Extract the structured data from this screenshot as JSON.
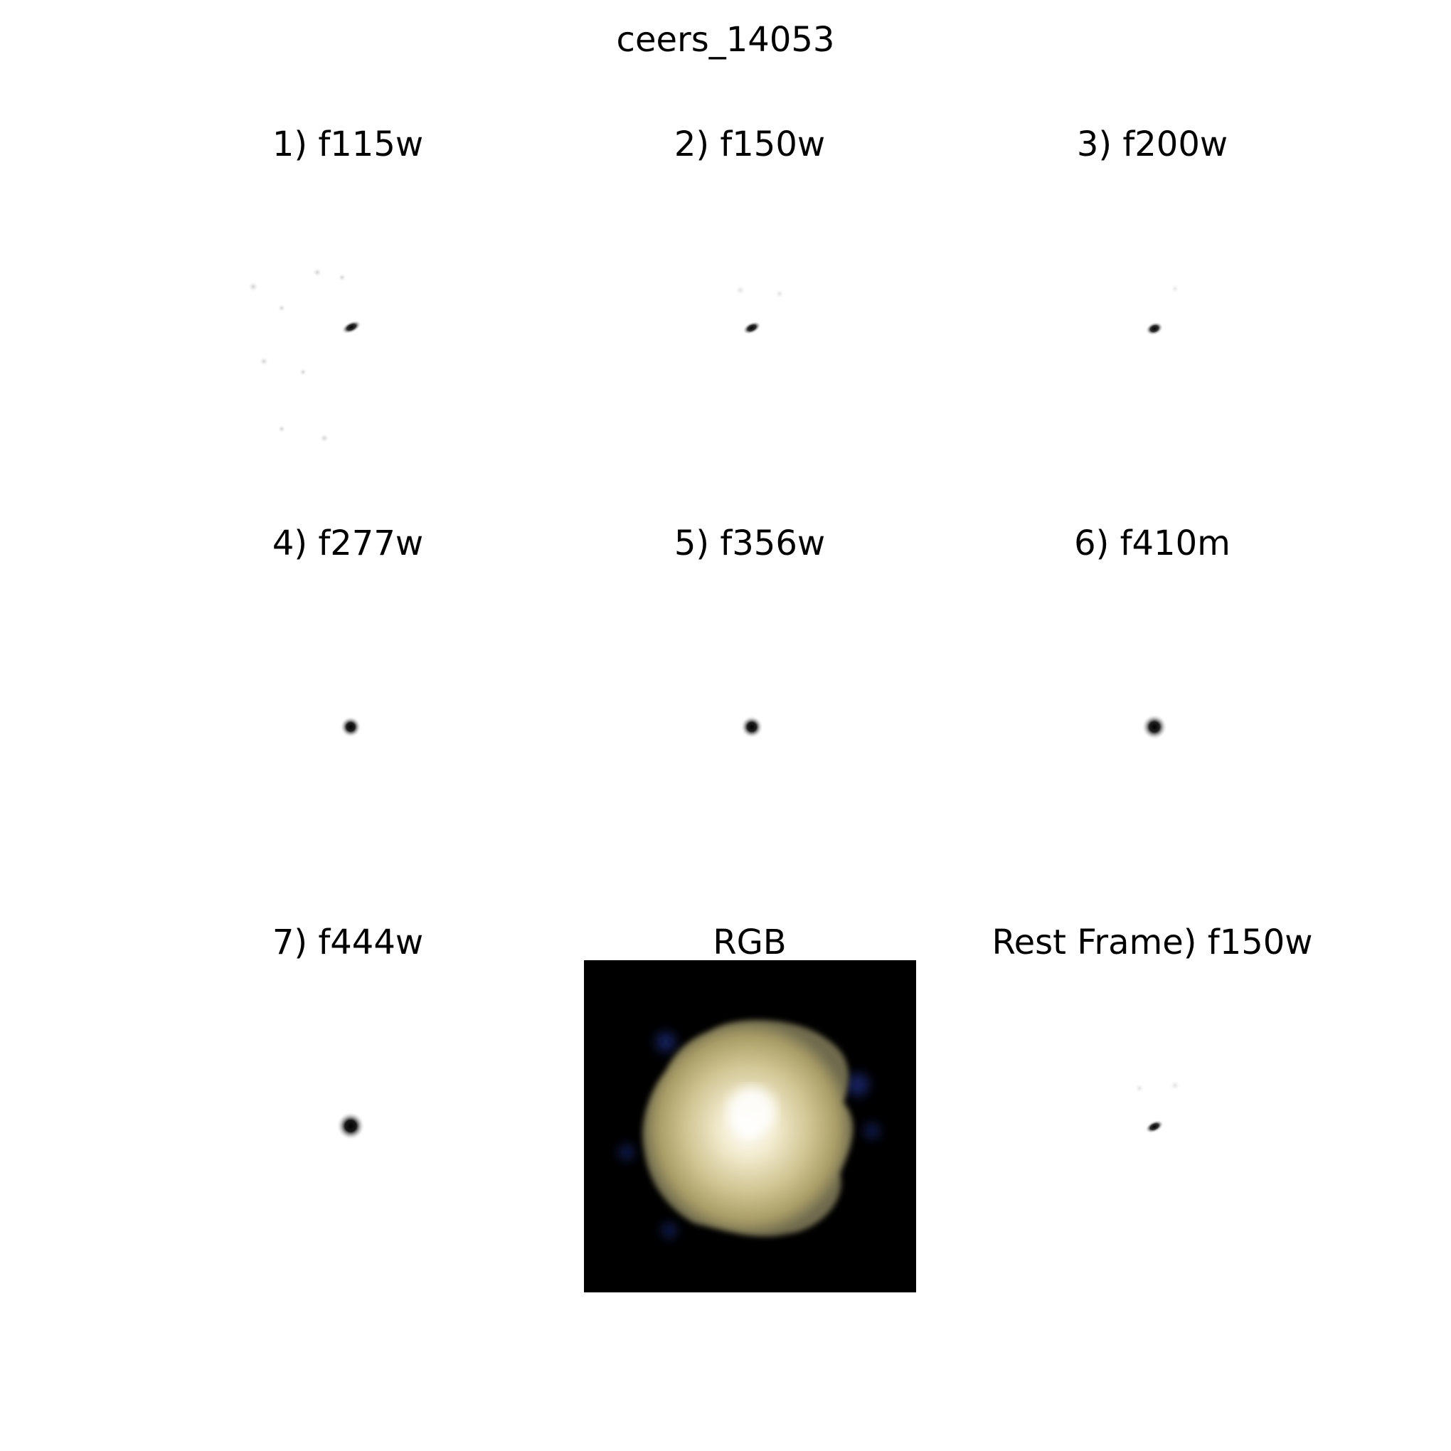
{
  "figure": {
    "title": "ceers_14053"
  },
  "panels": [
    {
      "id": "f115w",
      "title": "1) f115w",
      "kind": "band",
      "appearance": "compact dark core with faint scattered speckles"
    },
    {
      "id": "f150w",
      "title": "2) f150w",
      "kind": "band",
      "appearance": "compact dark core"
    },
    {
      "id": "f200w",
      "title": "3) f200w",
      "kind": "band",
      "appearance": "compact dark core"
    },
    {
      "id": "f277w",
      "title": "4) f277w",
      "kind": "band",
      "appearance": "round dark point source"
    },
    {
      "id": "f356w",
      "title": "5) f356w",
      "kind": "band",
      "appearance": "round dark point source"
    },
    {
      "id": "f410m",
      "title": "6) f410m",
      "kind": "band",
      "appearance": "round dark point source"
    },
    {
      "id": "f444w",
      "title": "7) f444w",
      "kind": "band",
      "appearance": "round dark point source"
    },
    {
      "id": "rgb",
      "title": "RGB",
      "kind": "rgb",
      "appearance": "pale yellow-white galaxy on black background with blue fringes"
    },
    {
      "id": "rest-frame-f150w",
      "title": "Rest Frame) f150w",
      "kind": "band",
      "appearance": "compact dark core"
    }
  ],
  "colors": {
    "background": "#ffffff",
    "source": "#000000",
    "rgb_background": "#000000",
    "rgb_galaxy_core": "#fffbea",
    "rgb_galaxy_body": "#c9bd8a",
    "rgb_fringe": "#1a2a78"
  }
}
